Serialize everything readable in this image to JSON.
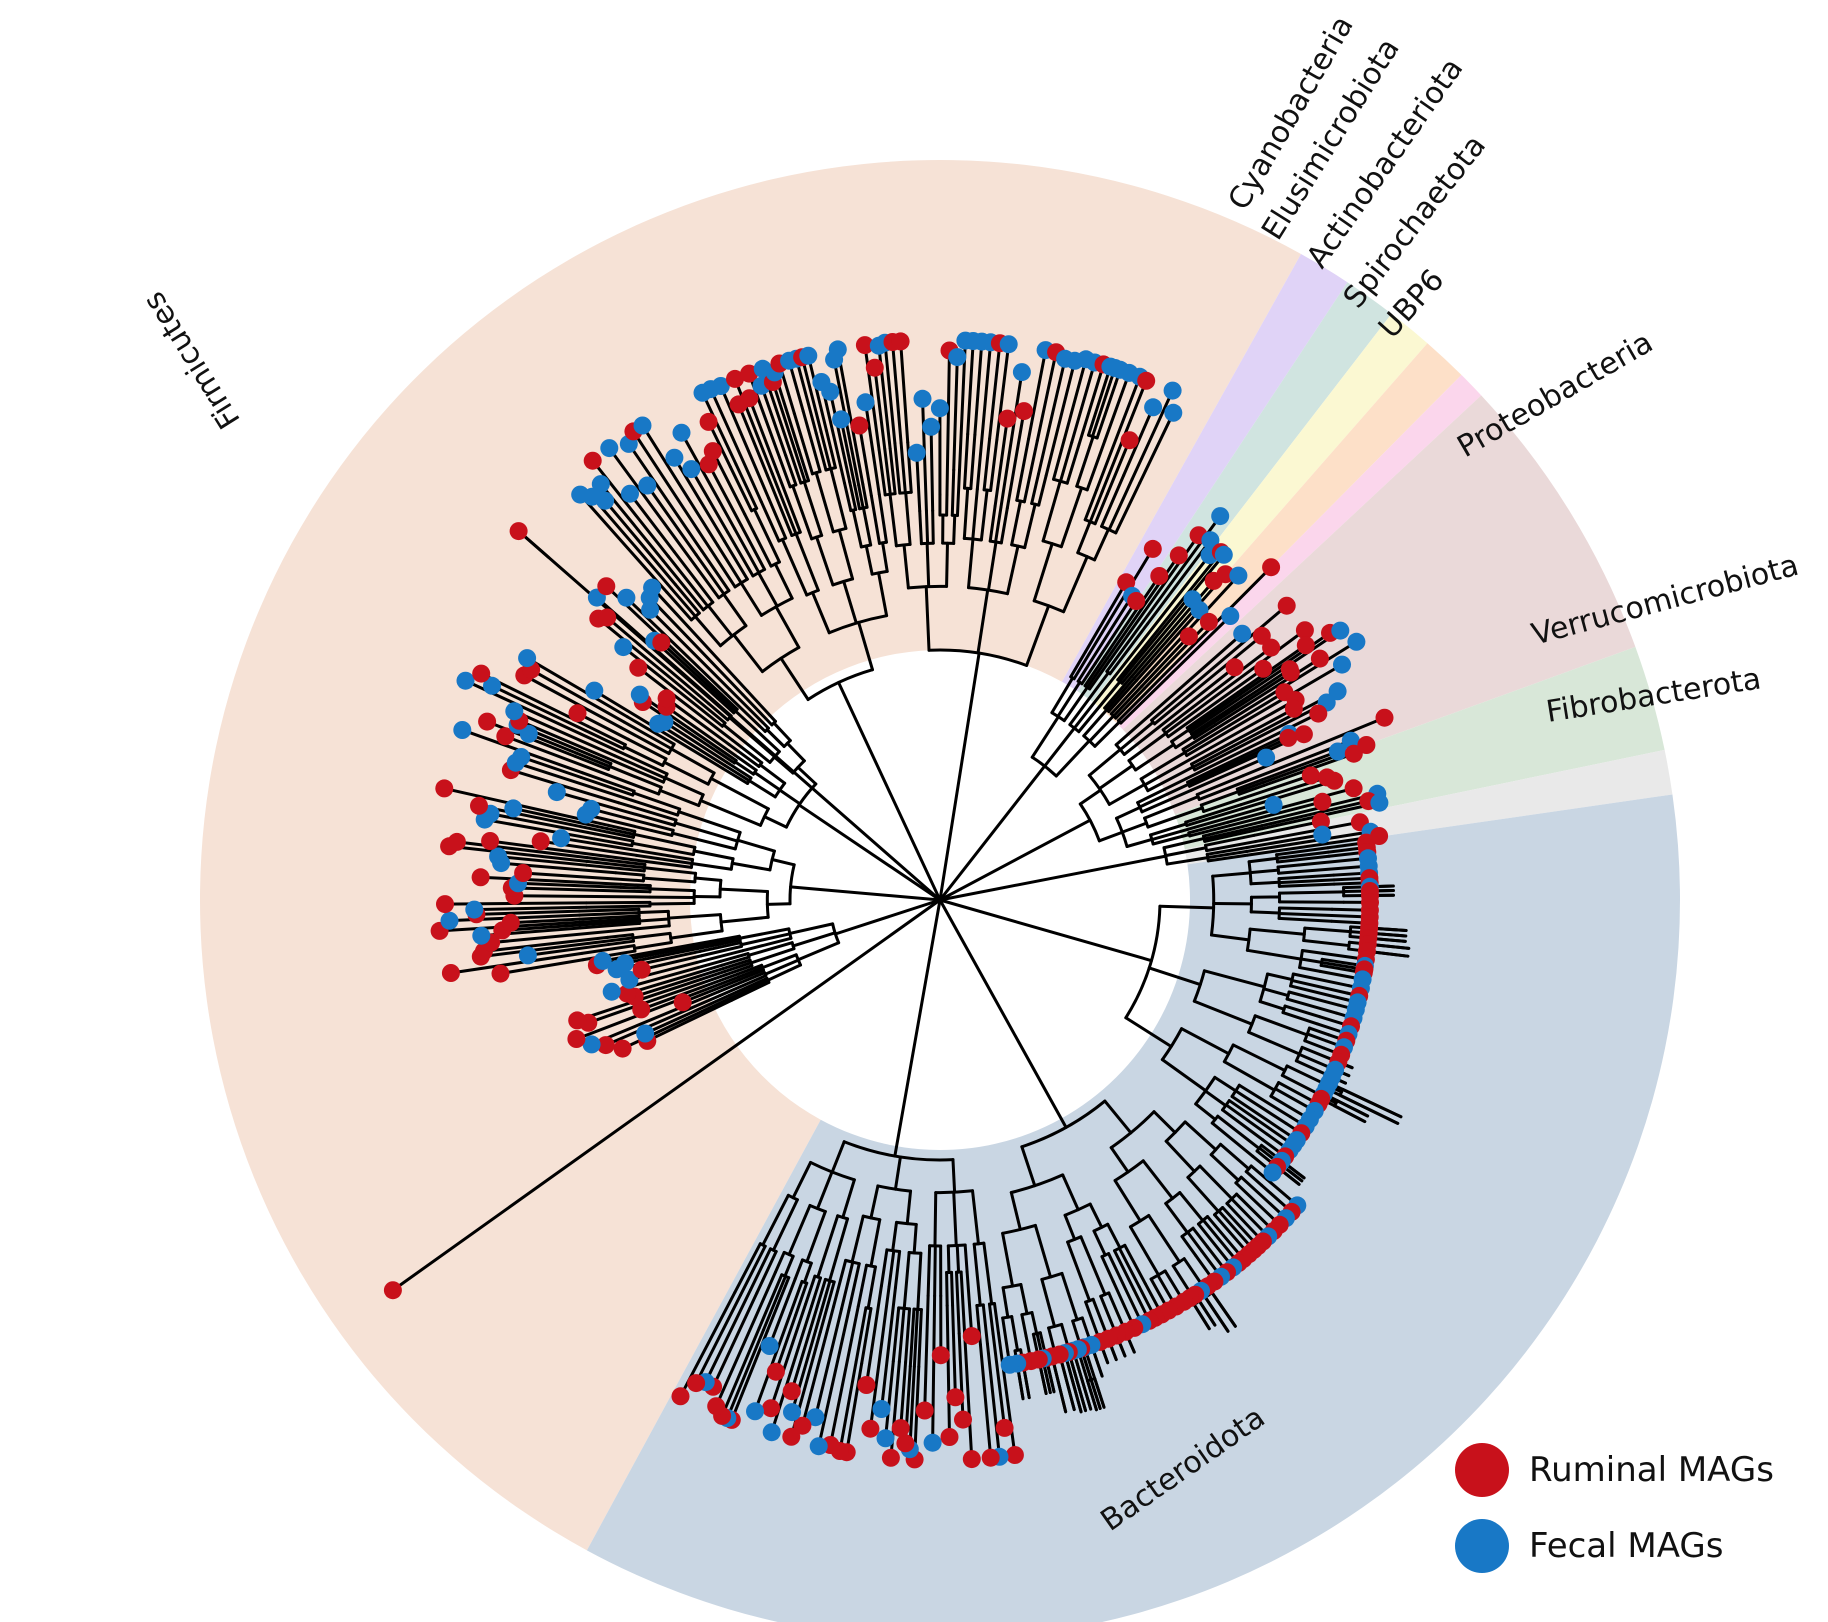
{
  "colors": {
    "ruminal": "#c8111b",
    "fecal": "#1878c6",
    "branch": "#000000"
  },
  "clades": [
    {
      "name": "Firmicutes",
      "fill": "#f6e2d6"
    },
    {
      "name": "Cyanobacteria",
      "fill": "#e0d3f7"
    },
    {
      "name": "Elusimicrobiota",
      "fill": "#d0e4e0"
    },
    {
      "name": "Actinobacteriota",
      "fill": "#fbf8d2"
    },
    {
      "name": "Spirochaetota",
      "fill": "#fde0c8"
    },
    {
      "name": "UBP6",
      "fill": "#fbd6ec"
    },
    {
      "name": "Proteobacteria",
      "fill": "#ead9d9"
    },
    {
      "name": "Verrucomicrobiota",
      "fill": "#d8e7d8"
    },
    {
      "name": "Fibrobacterota",
      "fill": "#e9e9e9"
    },
    {
      "name": "Bacteroidota",
      "fill": "#c9d6e3"
    }
  ],
  "legend": {
    "ruminal_label": "Ruminal MAGs",
    "fecal_label": "Fecal MAGs"
  }
}
